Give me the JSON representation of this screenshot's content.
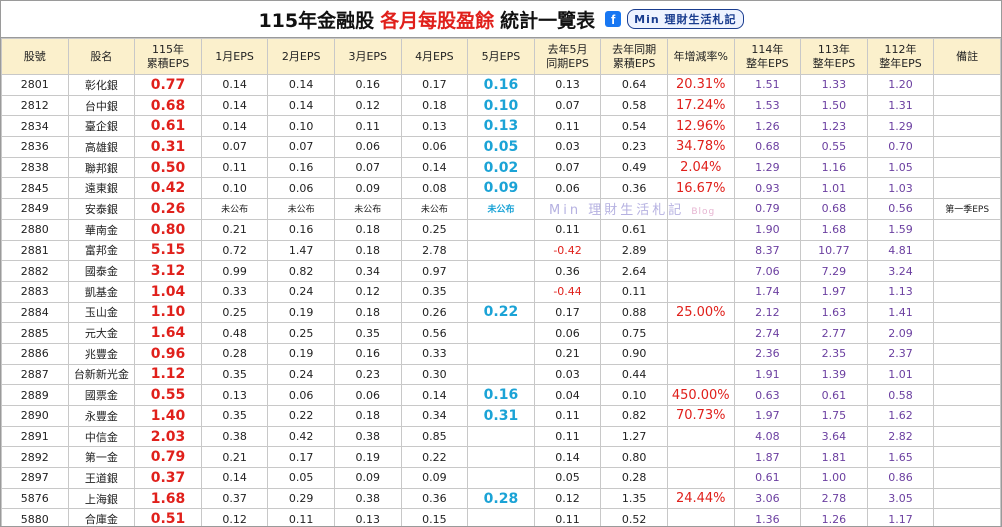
{
  "title": {
    "prefix": "115年金融股",
    "highlight": "各月每股盈餘",
    "suffix": "統計一覽表",
    "brand": "Min 理財生活札記"
  },
  "watermark": {
    "text": "Min 理財生活札記",
    "suffix": "Blog"
  },
  "table": {
    "headers": [
      [
        "股號"
      ],
      [
        "股名"
      ],
      [
        "115年",
        "累積EPS"
      ],
      [
        "1月EPS"
      ],
      [
        "2月EPS"
      ],
      [
        "3月EPS"
      ],
      [
        "4月EPS"
      ],
      [
        "5月EPS"
      ],
      [
        "去年5月",
        "同期EPS"
      ],
      [
        "去年同期",
        "累積EPS"
      ],
      [
        "年增減率%"
      ],
      [
        "114年",
        "整年EPS"
      ],
      [
        "113年",
        "整年EPS"
      ],
      [
        "112年",
        "整年EPS"
      ],
      [
        "備註"
      ]
    ],
    "rows": [
      [
        "2801",
        "彰化銀",
        "0.77",
        "0.14",
        "0.14",
        "0.16",
        "0.17",
        "0.16",
        "0.13",
        "0.64",
        "20.31%",
        "1.51",
        "1.33",
        "1.20",
        null
      ],
      [
        "2812",
        "台中銀",
        "0.68",
        "0.14",
        "0.14",
        "0.12",
        "0.18",
        "0.10",
        "0.07",
        "0.58",
        "17.24%",
        "1.53",
        "1.50",
        "1.31",
        null
      ],
      [
        "2834",
        "臺企銀",
        "0.61",
        "0.14",
        "0.10",
        "0.11",
        "0.13",
        "0.13",
        "0.11",
        "0.54",
        "12.96%",
        "1.26",
        "1.23",
        "1.29",
        null
      ],
      [
        "2836",
        "高雄銀",
        "0.31",
        "0.07",
        "0.07",
        "0.06",
        "0.06",
        "0.05",
        "0.03",
        "0.23",
        "34.78%",
        "0.68",
        "0.55",
        "0.70",
        null
      ],
      [
        "2838",
        "聯邦銀",
        "0.50",
        "0.11",
        "0.16",
        "0.07",
        "0.14",
        "0.02",
        "0.07",
        "0.49",
        "2.04%",
        "1.29",
        "1.16",
        "1.05",
        null
      ],
      [
        "2845",
        "遠東銀",
        "0.42",
        "0.10",
        "0.06",
        "0.09",
        "0.08",
        "0.09",
        "0.06",
        "0.36",
        "16.67%",
        "0.93",
        "1.01",
        "1.03",
        null
      ],
      [
        "2849",
        "安泰銀",
        "0.26",
        "未公布",
        "未公布",
        "未公布",
        "未公布",
        "未公布",
        null,
        null,
        null,
        "0.79",
        "0.68",
        "0.56",
        "第一季EPS"
      ],
      [
        "2880",
        "華南金",
        "0.80",
        "0.21",
        "0.16",
        "0.18",
        "0.25",
        null,
        "0.11",
        "0.61",
        null,
        "1.90",
        "1.68",
        "1.59",
        null
      ],
      [
        "2881",
        "富邦金",
        "5.15",
        "0.72",
        "1.47",
        "0.18",
        "2.78",
        null,
        "-0.42",
        "2.89",
        null,
        "8.37",
        "10.77",
        "4.81",
        null
      ],
      [
        "2882",
        "國泰金",
        "3.12",
        "0.99",
        "0.82",
        "0.34",
        "0.97",
        null,
        "0.36",
        "2.64",
        null,
        "7.06",
        "7.29",
        "3.24",
        null
      ],
      [
        "2883",
        "凱基金",
        "1.04",
        "0.33",
        "0.24",
        "0.12",
        "0.35",
        null,
        "-0.44",
        "0.11",
        null,
        "1.74",
        "1.97",
        "1.13",
        null
      ],
      [
        "2884",
        "玉山金",
        "1.10",
        "0.25",
        "0.19",
        "0.18",
        "0.26",
        "0.22",
        "0.17",
        "0.88",
        "25.00%",
        "2.12",
        "1.63",
        "1.41",
        null
      ],
      [
        "2885",
        "元大金",
        "1.64",
        "0.48",
        "0.25",
        "0.35",
        "0.56",
        null,
        "0.06",
        "0.75",
        null,
        "2.74",
        "2.77",
        "2.09",
        null
      ],
      [
        "2886",
        "兆豐金",
        "0.96",
        "0.28",
        "0.19",
        "0.16",
        "0.33",
        null,
        "0.21",
        "0.90",
        null,
        "2.36",
        "2.35",
        "2.37",
        null
      ],
      [
        "2887",
        "台新新光金",
        "1.12",
        "0.35",
        "0.24",
        "0.23",
        "0.30",
        null,
        "0.03",
        "0.44",
        null,
        "1.91",
        "1.39",
        "1.01",
        null
      ],
      [
        "2889",
        "國票金",
        "0.55",
        "0.13",
        "0.06",
        "0.06",
        "0.14",
        "0.16",
        "0.04",
        "0.10",
        "450.00%",
        "0.63",
        "0.61",
        "0.58",
        null
      ],
      [
        "2890",
        "永豐金",
        "1.40",
        "0.35",
        "0.22",
        "0.18",
        "0.34",
        "0.31",
        "0.11",
        "0.82",
        "70.73%",
        "1.97",
        "1.75",
        "1.62",
        null
      ],
      [
        "2891",
        "中信金",
        "2.03",
        "0.38",
        "0.42",
        "0.38",
        "0.85",
        null,
        "0.11",
        "1.27",
        null,
        "4.08",
        "3.64",
        "2.82",
        null
      ],
      [
        "2892",
        "第一金",
        "0.79",
        "0.21",
        "0.17",
        "0.19",
        "0.22",
        null,
        "0.14",
        "0.80",
        null,
        "1.87",
        "1.81",
        "1.65",
        null
      ],
      [
        "2897",
        "王道銀",
        "0.37",
        "0.14",
        "0.05",
        "0.09",
        "0.09",
        null,
        "0.05",
        "0.28",
        null,
        "0.61",
        "1.00",
        "0.86",
        null
      ],
      [
        "5876",
        "上海銀",
        "1.68",
        "0.37",
        "0.29",
        "0.38",
        "0.36",
        "0.28",
        "0.12",
        "1.35",
        "24.44%",
        "3.06",
        "2.78",
        "3.05",
        null
      ],
      [
        "5880",
        "合庫金",
        "0.51",
        "0.12",
        "0.11",
        "0.13",
        "0.15",
        null,
        "0.11",
        "0.52",
        null,
        "1.36",
        "1.26",
        "1.17",
        null
      ]
    ]
  }
}
